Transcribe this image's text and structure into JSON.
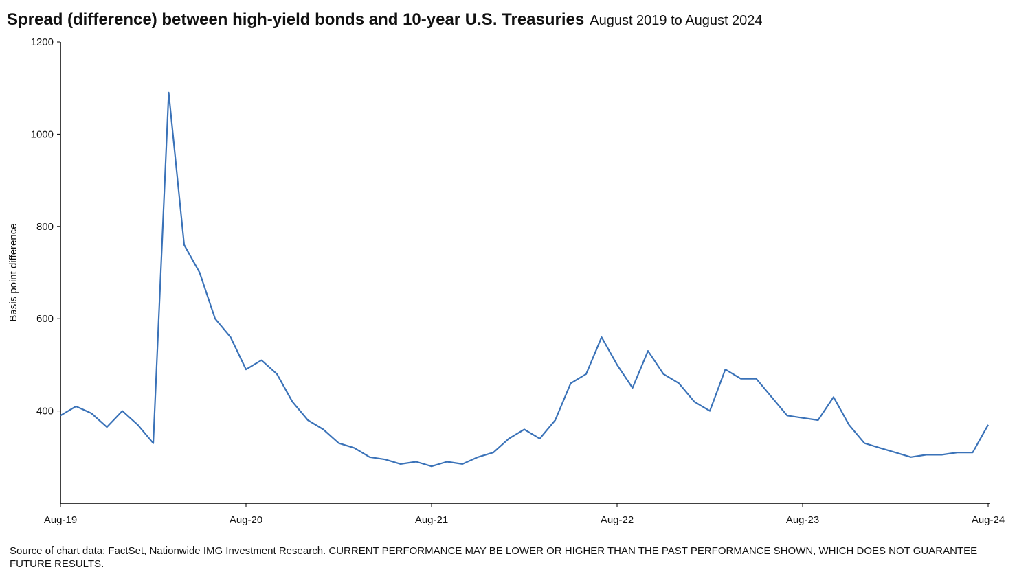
{
  "chart_data": {
    "type": "line",
    "title": "Spread (difference) between high-yield bonds and 10-year U.S. Treasuries",
    "subtitle": "August 2019 to August 2024",
    "y_label": "Basis point difference",
    "source": "Source of chart data: FactSet, Nationwide IMG Investment Research. CURRENT PERFORMANCE MAY BE LOWER OR HIGHER THAN THE PAST PERFORMANCE SHOWN, WHICH DOES NOT GUARANTEE FUTURE RESULTS.",
    "x": [
      "2019-08",
      "2019-09",
      "2019-10",
      "2019-11",
      "2019-12",
      "2020-01",
      "2020-02",
      "2020-03",
      "2020-04",
      "2020-05",
      "2020-06",
      "2020-07",
      "2020-08",
      "2020-09",
      "2020-10",
      "2020-11",
      "2020-12",
      "2021-01",
      "2021-02",
      "2021-03",
      "2021-04",
      "2021-05",
      "2021-06",
      "2021-07",
      "2021-08",
      "2021-09",
      "2021-10",
      "2021-11",
      "2021-12",
      "2022-01",
      "2022-02",
      "2022-03",
      "2022-04",
      "2022-05",
      "2022-06",
      "2022-07",
      "2022-08",
      "2022-09",
      "2022-10",
      "2022-11",
      "2022-12",
      "2023-01",
      "2023-02",
      "2023-03",
      "2023-04",
      "2023-05",
      "2023-06",
      "2023-07",
      "2023-08",
      "2023-09",
      "2023-10",
      "2023-11",
      "2023-12",
      "2024-01",
      "2024-02",
      "2024-03",
      "2024-04",
      "2024-05",
      "2024-06",
      "2024-07",
      "2024-08"
    ],
    "series": [
      {
        "name": "Spread",
        "color": "#3a72b8",
        "values": [
          390,
          410,
          395,
          365,
          400,
          370,
          330,
          1090,
          760,
          700,
          600,
          560,
          490,
          510,
          480,
          420,
          380,
          360,
          330,
          320,
          300,
          295,
          285,
          290,
          280,
          290,
          285,
          300,
          310,
          340,
          360,
          340,
          380,
          460,
          480,
          560,
          500,
          450,
          530,
          480,
          460,
          420,
          400,
          490,
          470,
          470,
          430,
          390,
          385,
          380,
          430,
          370,
          330,
          320,
          310,
          300,
          305,
          305,
          310,
          310,
          370
        ]
      }
    ],
    "xlim": [
      "2019-08",
      "2024-08"
    ],
    "xticks": [
      {
        "value": "2019-08",
        "label": "Aug-19"
      },
      {
        "value": "2020-08",
        "label": "Aug-20"
      },
      {
        "value": "2021-08",
        "label": "Aug-21"
      },
      {
        "value": "2022-08",
        "label": "Aug-22"
      },
      {
        "value": "2023-08",
        "label": "Aug-23"
      },
      {
        "value": "2024-08",
        "label": "Aug-24"
      }
    ],
    "ylim": [
      200,
      1200
    ],
    "yticks": [
      400,
      600,
      800,
      1000,
      1200
    ],
    "grid": false
  }
}
